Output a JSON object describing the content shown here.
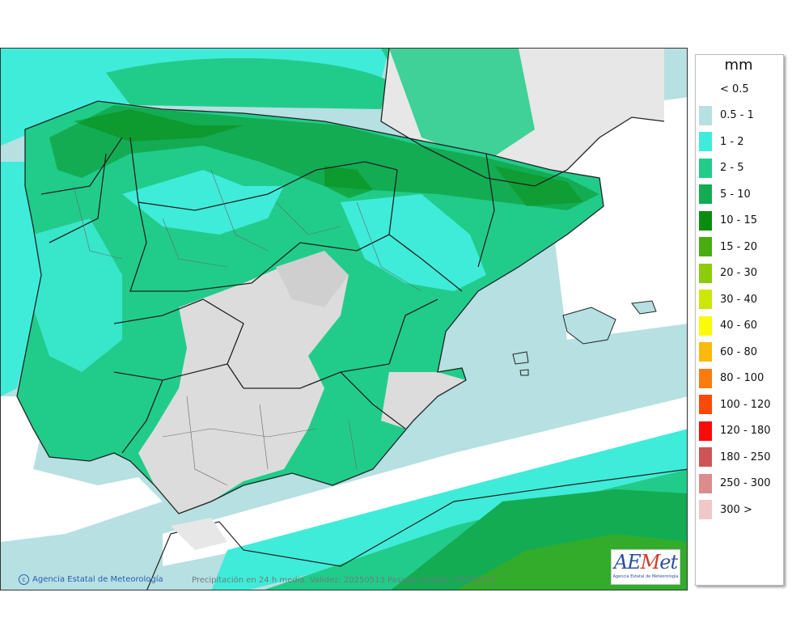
{
  "legend": {
    "unit": "mm",
    "items": [
      {
        "label": "< 0.5",
        "color": "#ffffff"
      },
      {
        "label": "0.5 - 1",
        "color": "#b6e0e2"
      },
      {
        "label": "1 - 2",
        "color": "#3fecd9"
      },
      {
        "label": "2 - 5",
        "color": "#21cc8a"
      },
      {
        "label": "5 - 10",
        "color": "#13ac53"
      },
      {
        "label": "10 - 15",
        "color": "#0a8c10"
      },
      {
        "label": "15 - 20",
        "color": "#49ac11"
      },
      {
        "label": "20 - 30",
        "color": "#8ccc0a"
      },
      {
        "label": "30 - 40",
        "color": "#cce60a"
      },
      {
        "label": "40 - 60",
        "color": "#fafa0a"
      },
      {
        "label": "60 - 80",
        "color": "#fbb90e"
      },
      {
        "label": "80 - 100",
        "color": "#fb7b0c"
      },
      {
        "label": "100 - 120",
        "color": "#fb4a08"
      },
      {
        "label": "120 - 180",
        "color": "#fb0a0a"
      },
      {
        "label": "180 - 250",
        "color": "#cd5555"
      },
      {
        "label": "250 - 300",
        "color": "#dc8c8c"
      },
      {
        "label": "300 >",
        "color": "#f0c8c8"
      }
    ]
  },
  "map": {
    "credit": "Agencia Estatal de Meteorología",
    "caption": "Precipitación en 24 h media. Validez: 20250513 Pasada modelo: 20250512",
    "logo_text": "AEMET",
    "logo_subtitle": "Agencia Estatal de Meteorología"
  }
}
